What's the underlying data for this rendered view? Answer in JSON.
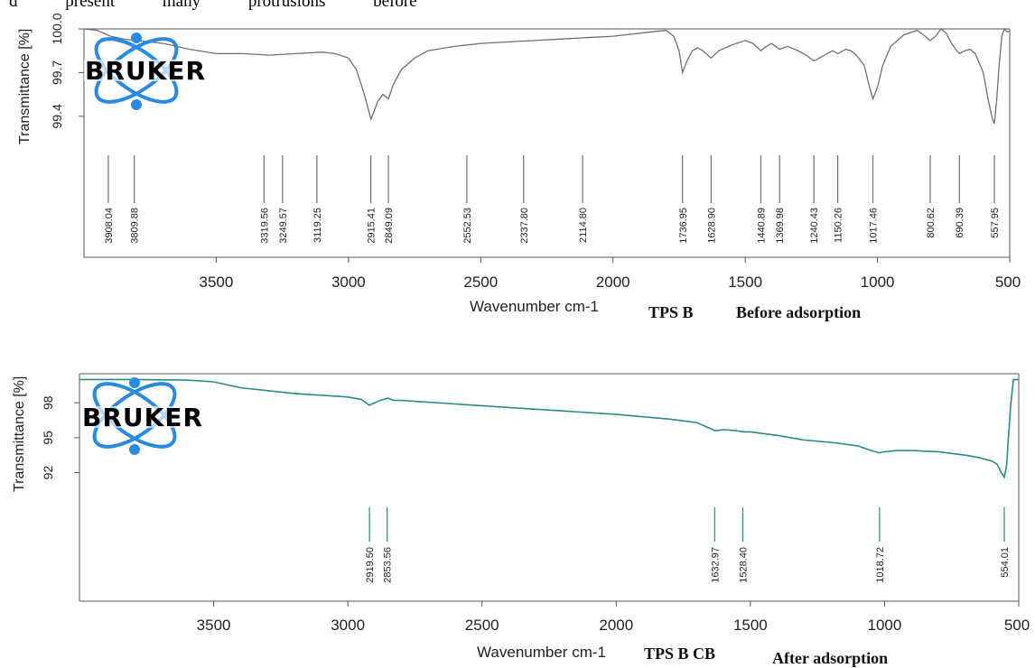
{
  "header_text": {
    "words": [
      "d",
      "present",
      "many",
      "protrusions",
      "before"
    ]
  },
  "logo": {
    "text": "BRUKER",
    "icon": "atom-orbit-icon",
    "color": "#2a8ae0"
  },
  "chart_data": [
    {
      "type": "line",
      "caption_sample": "TPS B",
      "caption_state": "Before adsorption",
      "xlabel": "Wavenumber cm-1",
      "ylabel": "Transmittance [%]",
      "xlim": [
        4000,
        500
      ],
      "x_ticks": [
        3500,
        3000,
        2500,
        2000,
        1500,
        1000,
        500
      ],
      "y_ticks": [
        "100.0",
        "99.7",
        "99.4"
      ],
      "y_tick_values": [
        100.0,
        99.7,
        99.4
      ],
      "ylim": [
        99.3,
        100.0
      ],
      "grid": false,
      "line_color": "#707070",
      "series": [
        {
          "x": [
            4000,
            3950,
            3900,
            3850,
            3800,
            3750,
            3700,
            3600,
            3500,
            3400,
            3300,
            3200,
            3100,
            3050,
            3000,
            2970,
            2940,
            2915,
            2890,
            2870,
            2849,
            2830,
            2800,
            2750,
            2700,
            2600,
            2500,
            2400,
            2300,
            2200,
            2100,
            2000,
            1900,
            1800,
            1770,
            1750,
            1737,
            1720,
            1700,
            1680,
            1660,
            1629,
            1600,
            1550,
            1500,
            1470,
            1441,
            1420,
            1400,
            1370,
            1340,
            1300,
            1270,
            1240,
            1200,
            1170,
            1150,
            1120,
            1100,
            1080,
            1050,
            1030,
            1017,
            1000,
            980,
            950,
            900,
            850,
            820,
            801,
            780,
            760,
            740,
            720,
            700,
            690,
            670,
            650,
            630,
            600,
            580,
            565,
            558,
            550,
            540,
            530,
            520,
            510,
            500
          ],
          "y": [
            100.0,
            99.99,
            99.95,
            99.93,
            99.92,
            99.91,
            99.9,
            99.86,
            99.83,
            99.83,
            99.82,
            99.83,
            99.84,
            99.83,
            99.8,
            99.72,
            99.55,
            99.38,
            99.5,
            99.55,
            99.52,
            99.62,
            99.72,
            99.8,
            99.85,
            99.88,
            99.9,
            99.91,
            99.92,
            99.93,
            99.94,
            99.95,
            99.97,
            99.99,
            99.95,
            99.85,
            99.7,
            99.78,
            99.85,
            99.87,
            99.85,
            99.8,
            99.85,
            99.89,
            99.92,
            99.9,
            99.85,
            99.88,
            99.9,
            99.86,
            99.88,
            99.85,
            99.82,
            99.78,
            99.82,
            99.85,
            99.83,
            99.86,
            99.85,
            99.82,
            99.75,
            99.6,
            99.52,
            99.6,
            99.75,
            99.88,
            99.96,
            99.99,
            99.95,
            99.92,
            99.95,
            100.0,
            99.97,
            99.9,
            99.85,
            99.83,
            99.85,
            99.86,
            99.83,
            99.7,
            99.5,
            99.38,
            99.35,
            99.5,
            99.75,
            99.95,
            100.0,
            99.98,
            99.98
          ]
        }
      ],
      "peaks": [
        "3908.04",
        "3809.88",
        "3319.56",
        "3249.57",
        "3119.25",
        "2915.41",
        "2849.09",
        "2552.53",
        "2337.80",
        "2114.80",
        "1736.95",
        "1628.90",
        "1440.89",
        "1369.98",
        "1240.43",
        "1150.26",
        "1017.46",
        "800.62",
        "690.39",
        "557.95"
      ],
      "peak_values": [
        3908.04,
        3809.88,
        3319.56,
        3249.57,
        3119.25,
        2915.41,
        2849.09,
        2552.53,
        2337.8,
        2114.8,
        1736.95,
        1628.9,
        1440.89,
        1369.98,
        1240.43,
        1150.26,
        1017.46,
        800.62,
        690.39,
        557.95
      ]
    },
    {
      "type": "line",
      "caption_sample": "TPS B CB",
      "caption_state": "After adsorption",
      "xlabel": "Wavenumber cm-1",
      "ylabel": "Transmittance [%]",
      "xlim": [
        4000,
        500
      ],
      "x_ticks": [
        3500,
        3000,
        2500,
        2000,
        1500,
        1000,
        500
      ],
      "y_ticks": [
        "98",
        "95",
        "92"
      ],
      "y_tick_values": [
        98,
        95,
        92
      ],
      "ylim": [
        91.5,
        100.5
      ],
      "grid": false,
      "line_color": "#2a8a8a",
      "series": [
        {
          "x": [
            4000,
            3800,
            3600,
            3500,
            3400,
            3200,
            3000,
            2950,
            2920,
            2900,
            2880,
            2850,
            2830,
            2800,
            2600,
            2400,
            2200,
            2000,
            1800,
            1700,
            1650,
            1630,
            1600,
            1550,
            1525,
            1500,
            1400,
            1300,
            1200,
            1100,
            1050,
            1020,
            1000,
            950,
            900,
            800,
            700,
            650,
            600,
            580,
            565,
            554,
            545,
            540,
            530,
            520,
            510,
            500
          ],
          "y": [
            100.0,
            100.0,
            99.95,
            99.8,
            99.3,
            98.8,
            98.5,
            98.3,
            97.8,
            98.0,
            98.2,
            98.4,
            98.2,
            98.2,
            97.9,
            97.6,
            97.3,
            97.0,
            96.6,
            96.3,
            95.8,
            95.6,
            95.7,
            95.6,
            95.5,
            95.5,
            95.2,
            94.8,
            94.6,
            94.3,
            93.9,
            93.7,
            93.8,
            93.9,
            93.9,
            93.8,
            93.5,
            93.3,
            93.0,
            92.7,
            92.0,
            91.6,
            92.6,
            94.5,
            97.8,
            100.0,
            100.0,
            100.0
          ]
        }
      ],
      "peaks": [
        "2919.50",
        "2853.56",
        "1632.97",
        "1528.40",
        "1018.72",
        "554.01"
      ],
      "peak_values": [
        2919.5,
        2853.56,
        1632.97,
        1528.4,
        1018.72,
        554.01
      ]
    }
  ]
}
